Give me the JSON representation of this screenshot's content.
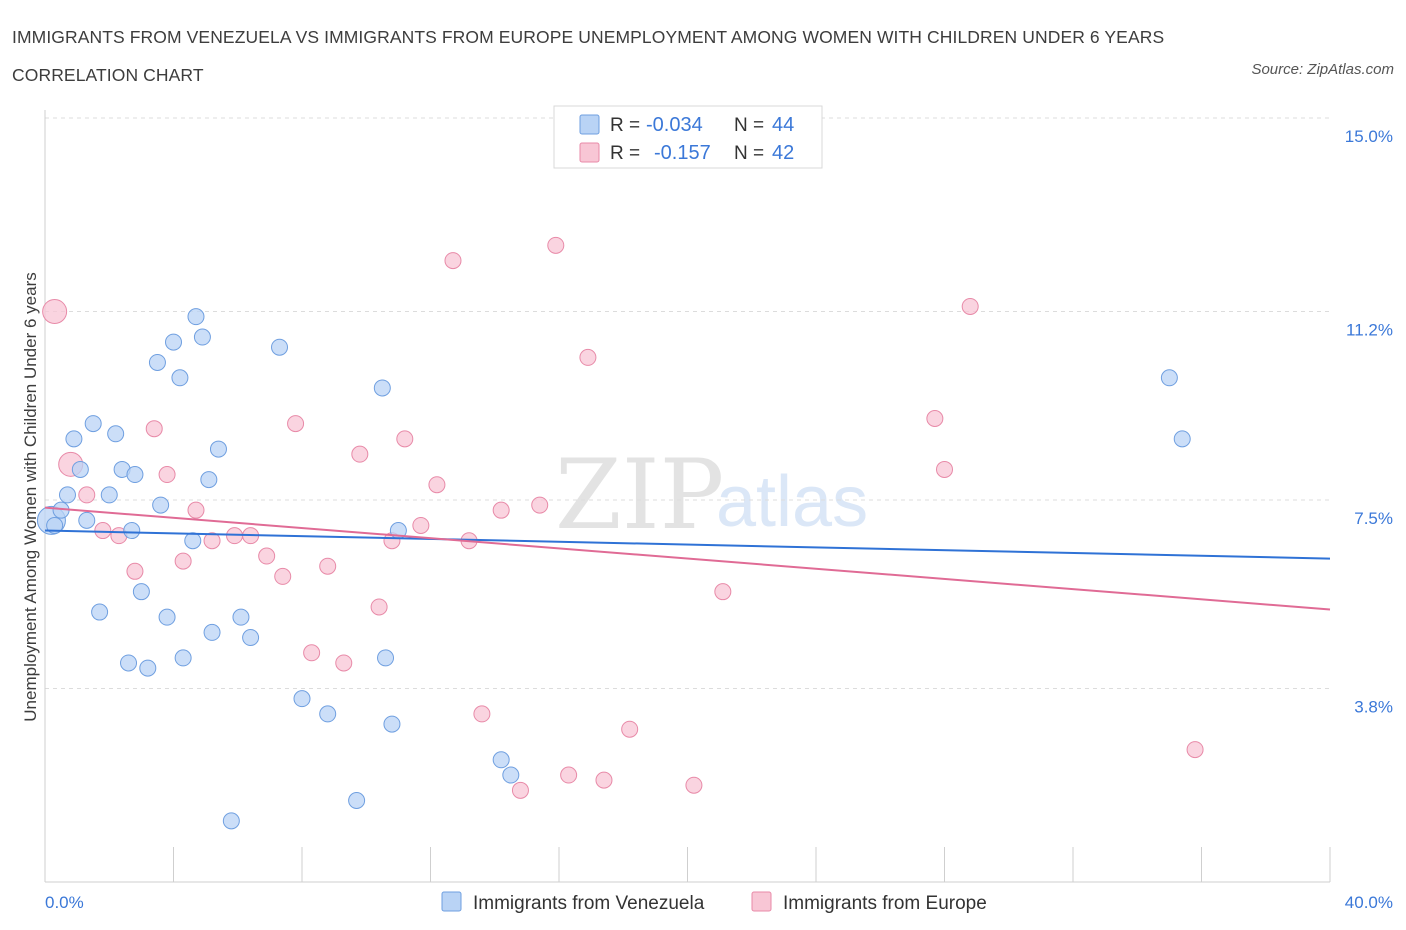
{
  "title": "IMMIGRANTS FROM VENEZUELA VS IMMIGRANTS FROM EUROPE UNEMPLOYMENT AMONG WOMEN WITH CHILDREN UNDER 6 YEARS CORRELATION CHART",
  "source": "Source: ZipAtlas.com",
  "watermark": {
    "zip": "ZIP",
    "atlas": "atlas"
  },
  "colors": {
    "venezuela_fill": "#b9d3f5",
    "venezuela_stroke": "#6f9fe0",
    "venezuela_line": "#2f72d6",
    "europe_fill": "#f8c6d5",
    "europe_stroke": "#e88aa8",
    "europe_line": "#e06b95",
    "tick_text": "#3b78d8",
    "grid": "#dcdcdc"
  },
  "legend": {
    "row1": {
      "r_label": "R =",
      "r_value": "-0.034",
      "n_label": "N =",
      "n_value": "44"
    },
    "row2": {
      "r_label": "R =",
      "r_value": "-0.157",
      "n_label": "N =",
      "n_value": "42"
    }
  },
  "chart_data": {
    "type": "scatter",
    "title": "IMMIGRANTS FROM VENEZUELA VS IMMIGRANTS FROM EUROPE UNEMPLOYMENT AMONG WOMEN WITH CHILDREN UNDER 6 YEARS CORRELATION CHART",
    "xlabel": "",
    "ylabel": "Unemployment Among Women with Children Under 6 years",
    "xlim": [
      0,
      40
    ],
    "ylim": [
      0,
      15
    ],
    "x_tick_labels": [
      "0.0%",
      "40.0%"
    ],
    "y_ticks": [
      3.8,
      7.5,
      11.2,
      15.0
    ],
    "y_tick_labels": [
      "3.8%",
      "7.5%",
      "11.2%",
      "15.0%"
    ],
    "grid": true,
    "legend_position": "top-center",
    "series": [
      {
        "name": "Immigrants from Venezuela",
        "r": -0.034,
        "n": 44,
        "trend": {
          "x": [
            0,
            40
          ],
          "y": [
            6.9,
            6.35
          ]
        },
        "points": [
          {
            "x": 0.2,
            "y": 7.1,
            "s": 3
          },
          {
            "x": 0.5,
            "y": 7.3,
            "s": 1
          },
          {
            "x": 0.7,
            "y": 7.6,
            "s": 1
          },
          {
            "x": 0.9,
            "y": 8.7,
            "s": 1
          },
          {
            "x": 1.1,
            "y": 8.1,
            "s": 1
          },
          {
            "x": 1.5,
            "y": 9.0,
            "s": 1
          },
          {
            "x": 2.0,
            "y": 7.6,
            "s": 1
          },
          {
            "x": 2.2,
            "y": 8.8,
            "s": 1
          },
          {
            "x": 2.4,
            "y": 8.1,
            "s": 1
          },
          {
            "x": 1.7,
            "y": 5.3,
            "s": 1
          },
          {
            "x": 2.7,
            "y": 6.9,
            "s": 1
          },
          {
            "x": 2.8,
            "y": 8.0,
            "s": 1
          },
          {
            "x": 3.0,
            "y": 5.7,
            "s": 1
          },
          {
            "x": 3.5,
            "y": 10.2,
            "s": 1
          },
          {
            "x": 3.6,
            "y": 7.4,
            "s": 1
          },
          {
            "x": 3.8,
            "y": 5.2,
            "s": 1
          },
          {
            "x": 4.0,
            "y": 10.6,
            "s": 1
          },
          {
            "x": 4.2,
            "y": 9.9,
            "s": 1
          },
          {
            "x": 4.6,
            "y": 6.7,
            "s": 1
          },
          {
            "x": 4.7,
            "y": 11.1,
            "s": 1
          },
          {
            "x": 4.9,
            "y": 10.7,
            "s": 1
          },
          {
            "x": 5.1,
            "y": 7.9,
            "s": 1
          },
          {
            "x": 5.2,
            "y": 4.9,
            "s": 1
          },
          {
            "x": 5.4,
            "y": 8.5,
            "s": 1
          },
          {
            "x": 6.1,
            "y": 5.2,
            "s": 1
          },
          {
            "x": 6.4,
            "y": 4.8,
            "s": 1
          },
          {
            "x": 7.3,
            "y": 10.5,
            "s": 1
          },
          {
            "x": 8.0,
            "y": 3.6,
            "s": 1
          },
          {
            "x": 8.8,
            "y": 3.3,
            "s": 1
          },
          {
            "x": 10.5,
            "y": 9.7,
            "s": 1
          },
          {
            "x": 10.6,
            "y": 4.4,
            "s": 1
          },
          {
            "x": 10.8,
            "y": 3.1,
            "s": 1
          },
          {
            "x": 11.0,
            "y": 6.9,
            "s": 1
          },
          {
            "x": 14.2,
            "y": 2.4,
            "s": 1
          },
          {
            "x": 14.5,
            "y": 2.1,
            "s": 1
          },
          {
            "x": 9.7,
            "y": 1.6,
            "s": 1
          },
          {
            "x": 5.8,
            "y": 1.2,
            "s": 1
          },
          {
            "x": 3.2,
            "y": 4.2,
            "s": 1
          },
          {
            "x": 2.6,
            "y": 4.3,
            "s": 1
          },
          {
            "x": 4.3,
            "y": 4.4,
            "s": 1
          },
          {
            "x": 35.0,
            "y": 9.9,
            "s": 1
          },
          {
            "x": 35.4,
            "y": 8.7,
            "s": 1
          },
          {
            "x": 0.3,
            "y": 7.0,
            "s": 1
          },
          {
            "x": 1.3,
            "y": 7.1,
            "s": 1
          }
        ]
      },
      {
        "name": "Immigrants from Europe",
        "r": -0.157,
        "n": 42,
        "trend": {
          "x": [
            0,
            40
          ],
          "y": [
            7.35,
            5.35
          ]
        },
        "points": [
          {
            "x": 0.3,
            "y": 11.2,
            "s": 2
          },
          {
            "x": 0.8,
            "y": 8.2,
            "s": 2
          },
          {
            "x": 1.3,
            "y": 7.6,
            "s": 1
          },
          {
            "x": 1.8,
            "y": 6.9,
            "s": 1
          },
          {
            "x": 2.3,
            "y": 6.8,
            "s": 1
          },
          {
            "x": 2.8,
            "y": 6.1,
            "s": 1
          },
          {
            "x": 3.4,
            "y": 8.9,
            "s": 1
          },
          {
            "x": 3.8,
            "y": 8.0,
            "s": 1
          },
          {
            "x": 4.3,
            "y": 6.3,
            "s": 1
          },
          {
            "x": 4.7,
            "y": 7.3,
            "s": 1
          },
          {
            "x": 5.2,
            "y": 6.7,
            "s": 1
          },
          {
            "x": 5.9,
            "y": 6.8,
            "s": 1
          },
          {
            "x": 6.4,
            "y": 6.8,
            "s": 1
          },
          {
            "x": 6.9,
            "y": 6.4,
            "s": 1
          },
          {
            "x": 7.4,
            "y": 6.0,
            "s": 1
          },
          {
            "x": 7.8,
            "y": 9.0,
            "s": 1
          },
          {
            "x": 8.3,
            "y": 4.5,
            "s": 1
          },
          {
            "x": 8.8,
            "y": 6.2,
            "s": 1
          },
          {
            "x": 9.3,
            "y": 4.3,
            "s": 1
          },
          {
            "x": 9.8,
            "y": 8.4,
            "s": 1
          },
          {
            "x": 10.4,
            "y": 5.4,
            "s": 1
          },
          {
            "x": 10.8,
            "y": 6.7,
            "s": 1
          },
          {
            "x": 11.2,
            "y": 8.7,
            "s": 1
          },
          {
            "x": 11.7,
            "y": 7.0,
            "s": 1
          },
          {
            "x": 12.2,
            "y": 7.8,
            "s": 1
          },
          {
            "x": 12.7,
            "y": 12.2,
            "s": 1
          },
          {
            "x": 13.2,
            "y": 6.7,
            "s": 1
          },
          {
            "x": 13.6,
            "y": 3.3,
            "s": 1
          },
          {
            "x": 14.2,
            "y": 7.3,
            "s": 1
          },
          {
            "x": 14.8,
            "y": 1.8,
            "s": 1
          },
          {
            "x": 15.4,
            "y": 7.4,
            "s": 1
          },
          {
            "x": 15.9,
            "y": 12.5,
            "s": 1
          },
          {
            "x": 16.3,
            "y": 2.1,
            "s": 1
          },
          {
            "x": 16.9,
            "y": 10.3,
            "s": 1
          },
          {
            "x": 17.4,
            "y": 2.0,
            "s": 1
          },
          {
            "x": 18.2,
            "y": 3.0,
            "s": 1
          },
          {
            "x": 20.2,
            "y": 1.9,
            "s": 1
          },
          {
            "x": 21.1,
            "y": 5.7,
            "s": 1
          },
          {
            "x": 27.7,
            "y": 9.1,
            "s": 1
          },
          {
            "x": 28.0,
            "y": 8.1,
            "s": 1
          },
          {
            "x": 28.8,
            "y": 11.3,
            "s": 1
          },
          {
            "x": 35.8,
            "y": 2.6,
            "s": 1
          }
        ]
      }
    ]
  }
}
